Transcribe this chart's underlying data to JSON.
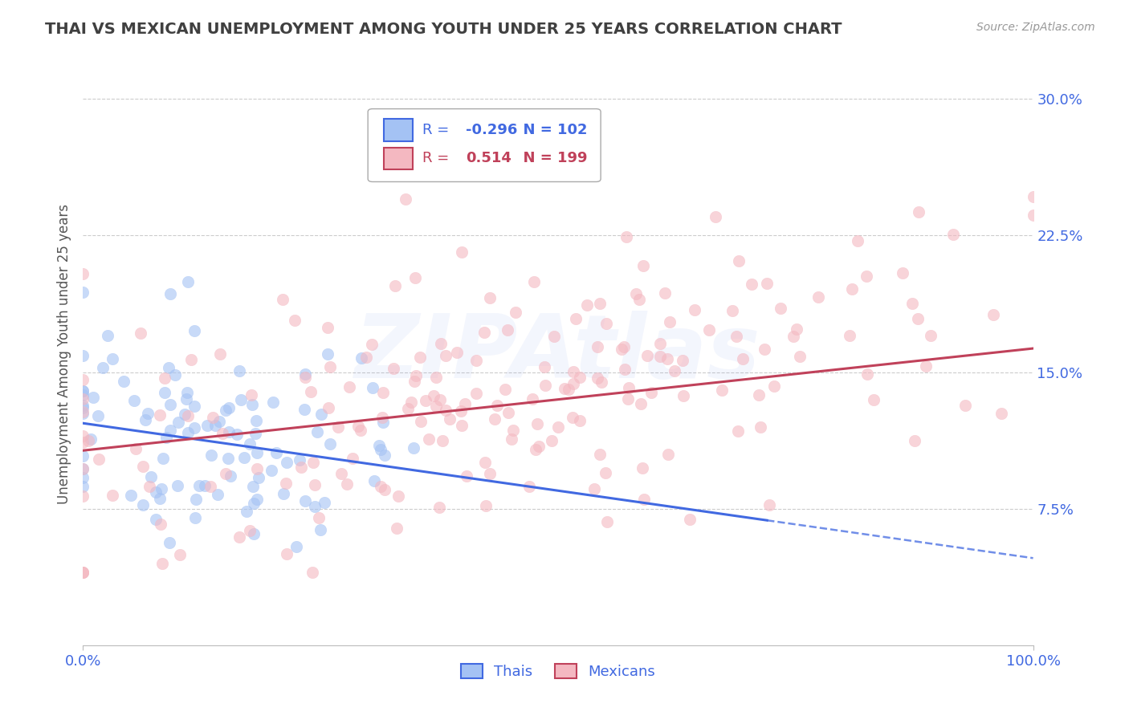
{
  "title": "THAI VS MEXICAN UNEMPLOYMENT AMONG YOUTH UNDER 25 YEARS CORRELATION CHART",
  "source": "Source: ZipAtlas.com",
  "ylabel": "Unemployment Among Youth under 25 years",
  "xlim": [
    0,
    1.0
  ],
  "ylim": [
    0,
    0.32
  ],
  "yticks": [
    0.075,
    0.15,
    0.225,
    0.3
  ],
  "ytick_labels": [
    "7.5%",
    "15.0%",
    "22.5%",
    "30.0%"
  ],
  "xticks": [
    0.0,
    1.0
  ],
  "xtick_labels": [
    "0.0%",
    "100.0%"
  ],
  "legend_r_thai": "-0.296",
  "legend_n_thai": "102",
  "legend_r_mexican": "0.514",
  "legend_n_mexican": "199",
  "thai_color": "#a4c2f4",
  "mexican_color": "#f4b8c1",
  "trend_thai_color": "#4169E1",
  "trend_mexican_color": "#c0415a",
  "watermark": "ZIPAtlas",
  "background_color": "#ffffff",
  "grid_color": "#cccccc",
  "title_color": "#404040",
  "axis_label_color": "#555555",
  "tick_label_color": "#4169E1",
  "thai_n": 102,
  "mexican_n": 199,
  "thai_r": -0.296,
  "mexican_r": 0.514,
  "thai_trend_x0": 0.0,
  "thai_trend_y0": 0.122,
  "thai_trend_x1": 1.0,
  "thai_trend_y1": 0.048,
  "thai_trend_solid_end": 0.72,
  "mexican_trend_x0": 0.0,
  "mexican_trend_y0": 0.107,
  "mexican_trend_x1": 1.0,
  "mexican_trend_y1": 0.163
}
